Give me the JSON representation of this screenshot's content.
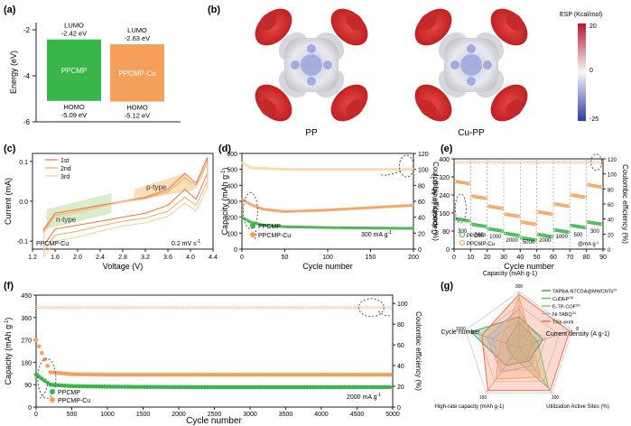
{
  "colors": {
    "green": "#3ab54a",
    "green_light": "#7ed37d",
    "orange": "#f5a05a",
    "orange_light": "#f8c796",
    "axis": "#222222",
    "dash": "#555555"
  },
  "panels": {
    "a": {
      "label": "(a)",
      "ylabel": "Energy (eV)",
      "yticks": [
        "-2",
        "-4",
        "-6"
      ],
      "bars": [
        {
          "name": "PPCMP",
          "lumo_label": "LUMO",
          "lumo_value": "-2.42 eV",
          "homo_label": "HOMO",
          "homo_value": "-5.09 eV",
          "lumo": -2.42,
          "homo": -5.09
        },
        {
          "name": "PPCMP-Cu",
          "lumo_label": "LUMO",
          "lumo_value": "-2.63 eV",
          "homo_label": "HOMO",
          "homo_value": "-5.12 eV",
          "lumo": -2.63,
          "homo": -5.12
        }
      ]
    },
    "b": {
      "label": "(b)",
      "molecules": [
        "PP",
        "Cu-PP"
      ],
      "scale_title": "ESP (Kcal/mol)",
      "scale_ticks": [
        "20",
        "0",
        "-25"
      ]
    },
    "c": {
      "label": "(c)",
      "ylabel": "Current (mA)",
      "xlabel": "Voltage (V)",
      "xticks": [
        "1.2",
        "1.6",
        "2.0",
        "2.4",
        "2.8",
        "3.2",
        "3.6",
        "4.0",
        "4.4"
      ],
      "yticks": [
        "0.1",
        "0.0",
        "-0.1"
      ],
      "legend": [
        "1st",
        "2nd",
        "3rd"
      ],
      "ntype": "n-type",
      "ptype": "p-type",
      "sample": "PPCMP-Cu",
      "rate": "0.2 mV s",
      "rate_sup": "-1"
    },
    "d": {
      "label": "(d)",
      "ylabel": "Capacity (mAh g",
      "ylabel_sup": "-1",
      "ylabel_end": ")",
      "y2label": "Coulombic efficiency (%)",
      "xlabel": "Cycle number",
      "xticks": [
        "0",
        "50",
        "100",
        "150",
        "200"
      ],
      "yticks": [
        "0",
        "100",
        "200",
        "300",
        "400",
        "500",
        "600"
      ],
      "y2ticks": [
        "0",
        "20",
        "40",
        "60",
        "80",
        "100",
        "120"
      ],
      "legend": [
        "PPCMP",
        "PPCMP-Cu"
      ],
      "rate": "300 mA g",
      "rate_sup": "-1"
    },
    "e": {
      "label": "(e)",
      "ylabel": "Capacity (mAh g",
      "ylabel_sup": "-1",
      "ylabel_end": ")",
      "y2label": "Coulombic efficiency (%)",
      "xlabel": "Cycle number",
      "xticks": [
        "0",
        "10",
        "20",
        "30",
        "40",
        "50",
        "60",
        "70",
        "80",
        "90"
      ],
      "yticks": [
        "0",
        "80",
        "160",
        "240",
        "320",
        "400"
      ],
      "y2ticks": [
        "0",
        "20",
        "40",
        "60",
        "80",
        "100",
        "120"
      ],
      "rates": [
        "300",
        "500",
        "1000",
        "2000",
        "5000",
        "2000",
        "1000",
        "500",
        "300"
      ],
      "rate_unit": "@mA g",
      "rate_unit_sup": "-1",
      "legend": [
        "PPCMP",
        "PPCMP-Cu"
      ]
    },
    "f": {
      "label": "(f)",
      "ylabel": "Capacity (mAh g",
      "ylabel_sup": "-1",
      "ylabel_end": ")",
      "y2label": "Coulombic efficiency (%)",
      "xlabel": "Cycle number",
      "xticks": [
        "0",
        "500",
        "1000",
        "1500",
        "2000",
        "2500",
        "3000",
        "3500",
        "4000",
        "4500",
        "5000"
      ],
      "yticks": [
        "0",
        "90",
        "180",
        "270",
        "360",
        "450"
      ],
      "y2ticks": [
        "0",
        "20",
        "40",
        "60",
        "80",
        "100"
      ],
      "legend": [
        "PPCMP",
        "PPCMP-Cu"
      ],
      "rate": "2000 mA g",
      "rate_sup": "-1"
    },
    "g": {
      "label": "(g)",
      "axes": [
        "Capacity (mAh g-1)",
        "Current density (A g-1)",
        "Utilization Active Sites (%)",
        "High-rate capacity (mAh g-1)",
        "Cycle number"
      ],
      "axis_max": [
        "300",
        "8",
        "100",
        "150",
        "1000"
      ],
      "legend": [
        "TAPBA-NTCDA@MWCNTs",
        "CuDEP",
        "E-TP-COF",
        "Ni-TABQ",
        "This work"
      ],
      "legend_refs": [
        "37",
        "28",
        "30",
        "31",
        ""
      ]
    }
  },
  "chart_data": [
    {
      "type": "bar",
      "title": "",
      "categories": [
        "PPCMP",
        "PPCMP-Cu"
      ],
      "series": [
        {
          "name": "LUMO",
          "values": [
            -2.42,
            -2.63
          ]
        },
        {
          "name": "HOMO",
          "values": [
            -5.09,
            -5.12
          ]
        }
      ],
      "ylabel": "Energy (eV)",
      "ylim": [
        -6,
        -1.5
      ]
    },
    {
      "type": "line",
      "title": "",
      "xlabel": "Voltage (V)",
      "ylabel": "Current (mA)",
      "xlim": [
        1.2,
        4.4
      ],
      "ylim": [
        -0.1,
        0.12
      ],
      "series": [
        {
          "name": "1st",
          "x": [
            1.4,
            1.6,
            2.0,
            2.4,
            2.8,
            3.2,
            3.6,
            3.9,
            4.1,
            4.3
          ],
          "y": [
            -0.07,
            -0.03,
            -0.02,
            -0.01,
            0.0,
            0.01,
            0.03,
            0.07,
            0.045,
            0.11
          ]
        },
        {
          "name": "2nd",
          "x": [
            1.4,
            1.6,
            2.0,
            2.4,
            2.8,
            3.2,
            3.6,
            3.9,
            4.1,
            4.3
          ],
          "y": [
            -0.075,
            -0.035,
            -0.025,
            -0.012,
            0.0,
            0.008,
            0.025,
            0.06,
            0.04,
            0.1
          ]
        },
        {
          "name": "3rd",
          "x": [
            1.4,
            1.6,
            2.0,
            2.4,
            2.8,
            3.2,
            3.6,
            3.9,
            4.1,
            4.3
          ],
          "y": [
            -0.08,
            -0.04,
            -0.03,
            -0.015,
            -0.002,
            0.006,
            0.022,
            0.055,
            0.035,
            0.095
          ]
        }
      ]
    },
    {
      "type": "scatter",
      "title": "",
      "xlabel": "Cycle number",
      "ylabel": "Capacity (mAh g-1)",
      "xlim": [
        0,
        200
      ],
      "ylim": [
        0,
        600
      ],
      "series": [
        {
          "name": "PPCMP",
          "x": [
            1,
            10,
            25,
            50,
            100,
            150,
            200
          ],
          "y": [
            195,
            170,
            150,
            140,
            135,
            132,
            130
          ]
        },
        {
          "name": "PPCMP-Cu",
          "x": [
            1,
            10,
            25,
            50,
            100,
            150,
            200
          ],
          "y": [
            310,
            280,
            250,
            235,
            245,
            260,
            275
          ]
        },
        {
          "name": "CE",
          "x": [
            1,
            10,
            50,
            100,
            150,
            200
          ],
          "y": [
            540,
            510,
            500,
            500,
            500,
            500
          ]
        }
      ]
    },
    {
      "type": "scatter",
      "title": "",
      "xlabel": "Cycle number",
      "ylabel": "Capacity (mAh g-1)",
      "xlim": [
        0,
        90
      ],
      "ylim": [
        0,
        400
      ],
      "series": [
        {
          "name": "PPCMP",
          "x": [
            5,
            15,
            25,
            35,
            45,
            55,
            65,
            75,
            85
          ],
          "y": [
            130,
            105,
            85,
            65,
            45,
            60,
            80,
            100,
            115
          ]
        },
        {
          "name": "PPCMP-Cu",
          "x": [
            5,
            15,
            25,
            35,
            45,
            55,
            65,
            75,
            85
          ],
          "y": [
            295,
            230,
            185,
            150,
            115,
            160,
            195,
            235,
            280
          ]
        }
      ]
    },
    {
      "type": "scatter",
      "title": "",
      "xlabel": "Cycle number",
      "ylabel": "Capacity (mAh g-1)",
      "xlim": [
        0,
        5000
      ],
      "ylim": [
        0,
        450
      ],
      "series": [
        {
          "name": "PPCMP",
          "x": [
            1,
            200,
            500,
            1000,
            2000,
            3000,
            4000,
            5000
          ],
          "y": [
            130,
            90,
            84,
            82,
            80,
            80,
            80,
            80
          ]
        },
        {
          "name": "PPCMP-Cu",
          "x": [
            1,
            200,
            500,
            1000,
            2000,
            3000,
            4000,
            5000
          ],
          "y": [
            270,
            140,
            132,
            130,
            130,
            130,
            130,
            130
          ]
        },
        {
          "name": "CE",
          "x": [
            0,
            5000
          ],
          "y": [
            400,
            400
          ]
        }
      ]
    }
  ]
}
